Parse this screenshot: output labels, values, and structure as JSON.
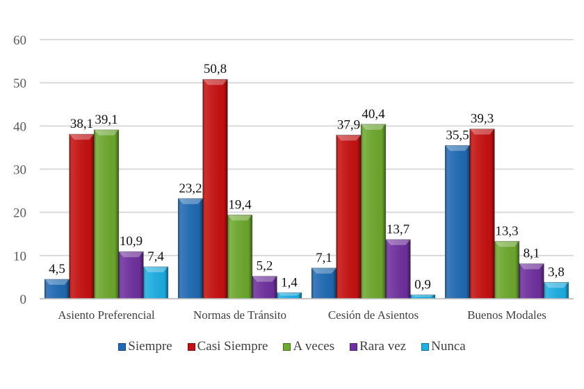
{
  "chart_data": {
    "type": "bar",
    "title": "",
    "xlabel": "",
    "ylabel": "",
    "ylim": [
      0,
      60
    ],
    "yticks": [
      0,
      10,
      20,
      30,
      40,
      50,
      60
    ],
    "grid": true,
    "legend_position": "bottom",
    "categories": [
      "Asiento Preferencial",
      "Normas de Tránsito",
      "Cesión de Asientos",
      "Buenos Modales"
    ],
    "series": [
      {
        "name": "Siempre",
        "color": "#1F6BB5",
        "values": [
          4.5,
          23.2,
          7.1,
          35.5
        ],
        "labels": [
          "4,5",
          "23,2",
          "7,1",
          "35,5"
        ]
      },
      {
        "name": "Casi Siempre",
        "color": "#C81010",
        "values": [
          38.1,
          50.8,
          37.9,
          39.3
        ],
        "labels": [
          "38,1",
          "50,8",
          "37,9",
          "39,3"
        ]
      },
      {
        "name": "A veces",
        "color": "#6EAA2E",
        "values": [
          39.1,
          19.4,
          40.4,
          13.3
        ],
        "labels": [
          "39,1",
          "19,4",
          "40,4",
          "13,3"
        ]
      },
      {
        "name": "Rara vez",
        "color": "#7030A0",
        "values": [
          10.9,
          5.2,
          13.7,
          8.1
        ],
        "labels": [
          "10,9",
          "5,2",
          "13,7",
          "8,1"
        ]
      },
      {
        "name": "Nunca",
        "color": "#1CB0E6",
        "values": [
          7.4,
          1.4,
          0.9,
          3.8
        ],
        "labels": [
          "7,4",
          "1,4",
          "0,9",
          "3,8"
        ]
      }
    ]
  }
}
